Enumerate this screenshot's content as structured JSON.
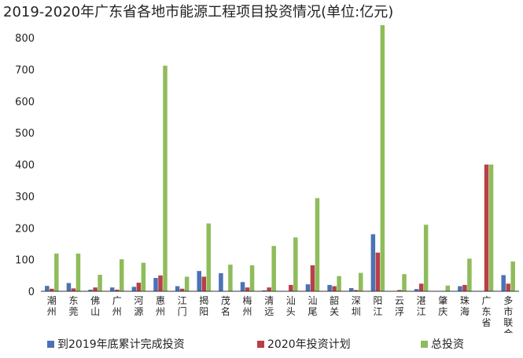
{
  "chart_data": {
    "type": "bar",
    "title": "2019-2020年广东省各地市能源工程项目投资情况(单位:亿元)",
    "categories": [
      "潮州",
      "东莞",
      "佛山",
      "广州",
      "河源",
      "惠州",
      "江门",
      "揭阳",
      "茂名",
      "梅州",
      "清远",
      "汕头",
      "汕尾",
      "韶关",
      "深圳",
      "阳江",
      "云浮",
      "湛江",
      "肇庆",
      "珠海",
      "广东省",
      "多市联合"
    ],
    "category_labels": [
      [
        "潮州"
      ],
      [
        "东莞"
      ],
      [
        "佛山"
      ],
      [
        "广州"
      ],
      [
        "河源"
      ],
      [
        "惠州"
      ],
      [
        "江门"
      ],
      [
        "揭阳"
      ],
      [
        "茂名"
      ],
      [
        "梅州"
      ],
      [
        "清远"
      ],
      [
        "汕头"
      ],
      [
        "汕尾"
      ],
      [
        "韶关"
      ],
      [
        "深圳"
      ],
      [
        "阳江"
      ],
      [
        "云浮"
      ],
      [
        "湛江"
      ],
      [
        "肇庆"
      ],
      [
        "珠海"
      ],
      [
        "广东省"
      ],
      [
        "多市联合"
      ]
    ],
    "series": [
      {
        "name": "到2019年底累计完成投资",
        "color": "#4a72b5",
        "values": [
          17,
          26,
          5,
          12,
          14,
          42,
          16,
          64,
          57,
          29,
          3,
          1,
          22,
          20,
          10,
          180,
          1,
          7,
          1,
          16,
          0,
          51
        ]
      },
      {
        "name": "2020年投资计划",
        "color": "#b84048",
        "values": [
          8,
          9,
          12,
          5,
          27,
          50,
          8,
          46,
          0,
          12,
          12,
          20,
          82,
          16,
          4,
          122,
          4,
          24,
          1,
          20,
          400,
          24
        ]
      },
      {
        "name": "总投资",
        "color": "#8fbc5a",
        "values": [
          119,
          119,
          52,
          101,
          90,
          712,
          46,
          214,
          84,
          82,
          143,
          170,
          294,
          48,
          58,
          840,
          54,
          210,
          18,
          103,
          400,
          94
        ]
      }
    ],
    "ylim": [
      0,
      850
    ],
    "yticks": [
      0,
      100,
      200,
      300,
      400,
      500,
      600,
      700,
      800
    ],
    "xlabel": "",
    "ylabel": "",
    "legend_position": "bottom",
    "grid": false
  }
}
